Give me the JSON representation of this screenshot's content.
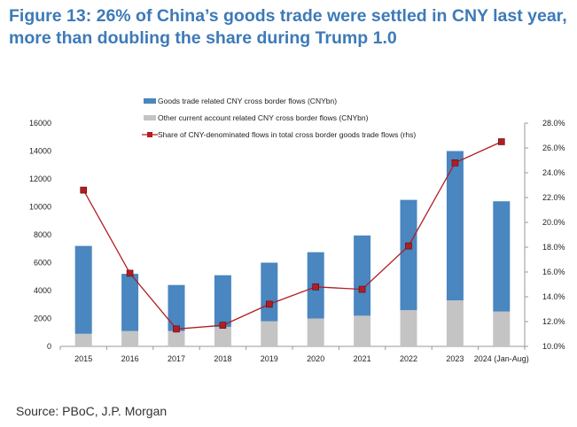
{
  "title": "Figure 13: 26% of China’s goods trade were settled in CNY last year, more than doubling the share during Trump 1.0",
  "source": "Source: PBoC, J.P. Morgan",
  "chart_data": {
    "type": "bar",
    "stacked": true,
    "categories": [
      "2015",
      "2016",
      "2017",
      "2018",
      "2019",
      "2020",
      "2021",
      "2022",
      "2023",
      "2024 (Jan-Aug)"
    ],
    "series": [
      {
        "name": "Goods trade related CNY cross border flows (CNYbn)",
        "type": "bar",
        "axis": "left",
        "color": "#4a86c0",
        "values": [
          6300,
          4100,
          3300,
          3700,
          4200,
          4750,
          5750,
          7900,
          10700,
          7900
        ]
      },
      {
        "name": "Other current account related CNY cross border flows (CNYbn)",
        "type": "bar",
        "axis": "left",
        "color": "#c4c4c4",
        "values": [
          900,
          1100,
          1100,
          1400,
          1800,
          2000,
          2200,
          2600,
          3300,
          2500
        ]
      },
      {
        "name": "Share of CNY-denominated flows in total cross border goods trade flows (rhs)",
        "type": "line",
        "axis": "right",
        "color": "#b01e23",
        "values": [
          22.6,
          15.9,
          11.4,
          11.7,
          13.4,
          14.8,
          14.6,
          18.1,
          24.8,
          26.5
        ]
      }
    ],
    "ylim": [
      0,
      16000
    ],
    "yticks": [
      "0",
      "2000",
      "4000",
      "6000",
      "8000",
      "10000",
      "12000",
      "14000",
      "16000"
    ],
    "y2lim": [
      10,
      28
    ],
    "y2ticks": [
      "10.0%",
      "12.0%",
      "14.0%",
      "16.0%",
      "18.0%",
      "20.0%",
      "22.0%",
      "24.0%",
      "26.0%",
      "28.0%"
    ],
    "legend": "top-center",
    "grid": false
  }
}
